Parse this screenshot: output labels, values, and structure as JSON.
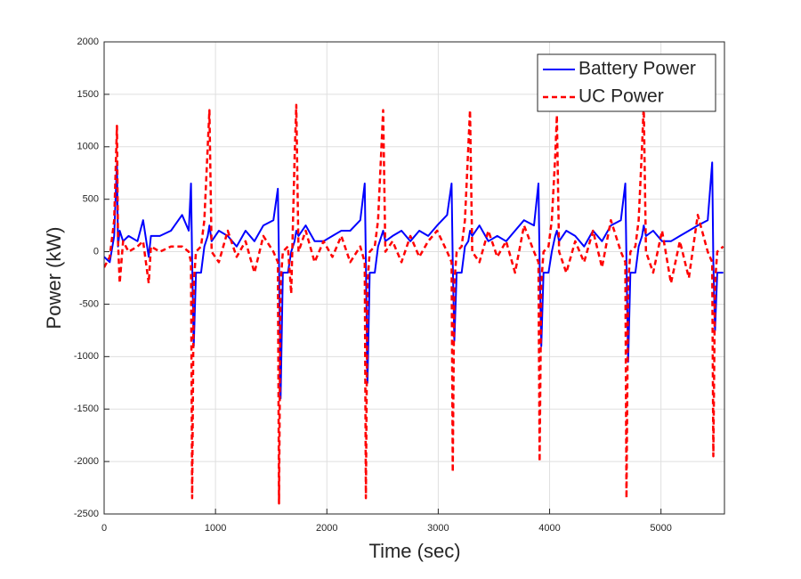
{
  "chart_data": {
    "type": "line",
    "xlabel": "Time (sec)",
    "ylabel": "Power (kW)",
    "x": [
      0,
      50,
      90,
      115,
      125,
      140,
      170,
      220,
      300,
      350,
      400,
      420,
      500,
      600,
      700,
      760,
      780,
      790,
      805,
      825,
      870,
      900,
      930,
      945,
      965,
      1030,
      1110,
      1190,
      1270,
      1350,
      1430,
      1520,
      1560,
      1570,
      1585,
      1605,
      1650,
      1680,
      1710,
      1725,
      1745,
      1810,
      1890,
      1970,
      2050,
      2130,
      2210,
      2300,
      2340,
      2350,
      2365,
      2385,
      2430,
      2460,
      2490,
      2505,
      2525,
      2590,
      2670,
      2750,
      2830,
      2910,
      2990,
      3080,
      3120,
      3130,
      3145,
      3165,
      3210,
      3240,
      3270,
      3285,
      3305,
      3370,
      3450,
      3530,
      3610,
      3690,
      3770,
      3860,
      3900,
      3910,
      3925,
      3945,
      3990,
      4020,
      4050,
      4065,
      4085,
      4150,
      4230,
      4310,
      4390,
      4470,
      4550,
      4640,
      4680,
      4690,
      4705,
      4725,
      4770,
      4800,
      4830,
      4845,
      4865,
      4930,
      5010,
      5090,
      5170,
      5250,
      5330,
      5420,
      5460,
      5470,
      5485,
      5505,
      5560
    ],
    "series": [
      {
        "name": "Battery Power",
        "color": "#0000ff",
        "dashed": false,
        "values": [
          -50,
          -100,
          150,
          850,
          50,
          200,
          100,
          150,
          100,
          300,
          -50,
          150,
          150,
          200,
          350,
          200,
          650,
          -100,
          -900,
          -200,
          -200,
          50,
          150,
          250,
          100,
          200,
          150,
          50,
          200,
          100,
          250,
          300,
          600,
          -100,
          -1400,
          -200,
          -200,
          0,
          100,
          200,
          150,
          250,
          100,
          100,
          150,
          200,
          200,
          300,
          650,
          -100,
          -1250,
          -200,
          -200,
          50,
          150,
          200,
          100,
          150,
          200,
          100,
          200,
          150,
          250,
          350,
          650,
          -100,
          -850,
          -200,
          -200,
          50,
          100,
          200,
          150,
          250,
          100,
          150,
          100,
          200,
          300,
          250,
          650,
          -100,
          -900,
          -200,
          -200,
          0,
          150,
          200,
          100,
          200,
          150,
          50,
          200,
          100,
          250,
          300,
          650,
          -100,
          -1050,
          -200,
          -200,
          50,
          150,
          250,
          150,
          200,
          100,
          100,
          150,
          200,
          250,
          300,
          850,
          -100,
          -750,
          -200,
          -200
        ]
      },
      {
        "name": "UC Power",
        "color": "#ff0000",
        "dashed": true,
        "values": [
          -150,
          -50,
          300,
          1200,
          100,
          -300,
          100,
          0,
          50,
          100,
          -300,
          50,
          0,
          50,
          50,
          0,
          -100,
          -2350,
          -300,
          0,
          50,
          300,
          1000,
          1350,
          0,
          -100,
          200,
          -50,
          100,
          -200,
          150,
          0,
          -100,
          -2400,
          -300,
          0,
          50,
          -400,
          900,
          1400,
          0,
          200,
          -100,
          100,
          -50,
          150,
          -100,
          50,
          -100,
          -2350,
          -300,
          0,
          50,
          300,
          1000,
          1350,
          0,
          100,
          -100,
          150,
          -50,
          100,
          200,
          0,
          -100,
          -2100,
          -300,
          0,
          50,
          300,
          1000,
          1350,
          0,
          -100,
          200,
          -50,
          100,
          -200,
          250,
          0,
          -100,
          -2000,
          -300,
          0,
          50,
          300,
          900,
          1300,
          0,
          -200,
          100,
          -100,
          200,
          -150,
          300,
          0,
          -100,
          -2350,
          -300,
          0,
          50,
          300,
          1000,
          1400,
          0,
          -200,
          200,
          -300,
          100,
          -250,
          350,
          0,
          -100,
          -1950,
          -300,
          0,
          50
        ]
      }
    ],
    "xlim": [
      0,
      5570
    ],
    "xticks": [
      0,
      1000,
      2000,
      3000,
      4000,
      5000
    ],
    "ylim": [
      -2500,
      2000
    ],
    "yticks": [
      -2500,
      -2000,
      -1500,
      -1000,
      -500,
      0,
      500,
      1000,
      1500,
      2000
    ],
    "grid": true,
    "legend": "northeast"
  }
}
